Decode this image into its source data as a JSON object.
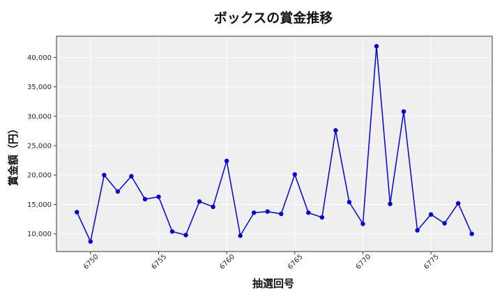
{
  "chart_data": {
    "type": "line",
    "title": "ボックスの賞金推移",
    "xlabel": "抽選回号",
    "ylabel": "賞金額（円）",
    "x": [
      6749,
      6750,
      6751,
      6752,
      6753,
      6754,
      6755,
      6756,
      6757,
      6758,
      6759,
      6760,
      6761,
      6762,
      6763,
      6764,
      6765,
      6766,
      6767,
      6768,
      6769,
      6770,
      6771,
      6772,
      6773,
      6774,
      6775,
      6776,
      6777,
      6778
    ],
    "y": [
      13700,
      8700,
      20000,
      17200,
      19800,
      15900,
      16300,
      10400,
      9800,
      15500,
      14600,
      22400,
      9700,
      13600,
      13800,
      13400,
      20100,
      13600,
      12800,
      27600,
      15400,
      11700,
      41900,
      15100,
      30800,
      10600,
      13300,
      11800,
      15200,
      10000
    ],
    "xlim": [
      6747.5,
      6779.5
    ],
    "ylim": [
      7000,
      43600
    ],
    "xticks": [
      6750,
      6755,
      6760,
      6765,
      6770,
      6775
    ],
    "xtick_labels": [
      "6750",
      "6755",
      "6760",
      "6765",
      "6770",
      "6775"
    ],
    "yticks": [
      10000,
      15000,
      20000,
      25000,
      30000,
      35000,
      40000
    ],
    "ytick_labels": [
      "10,000",
      "15,000",
      "20,000",
      "25,000",
      "30,000",
      "35,000",
      "40,000"
    ],
    "grid": true,
    "line_color": "#0000dd",
    "background_color": "#efefef"
  }
}
